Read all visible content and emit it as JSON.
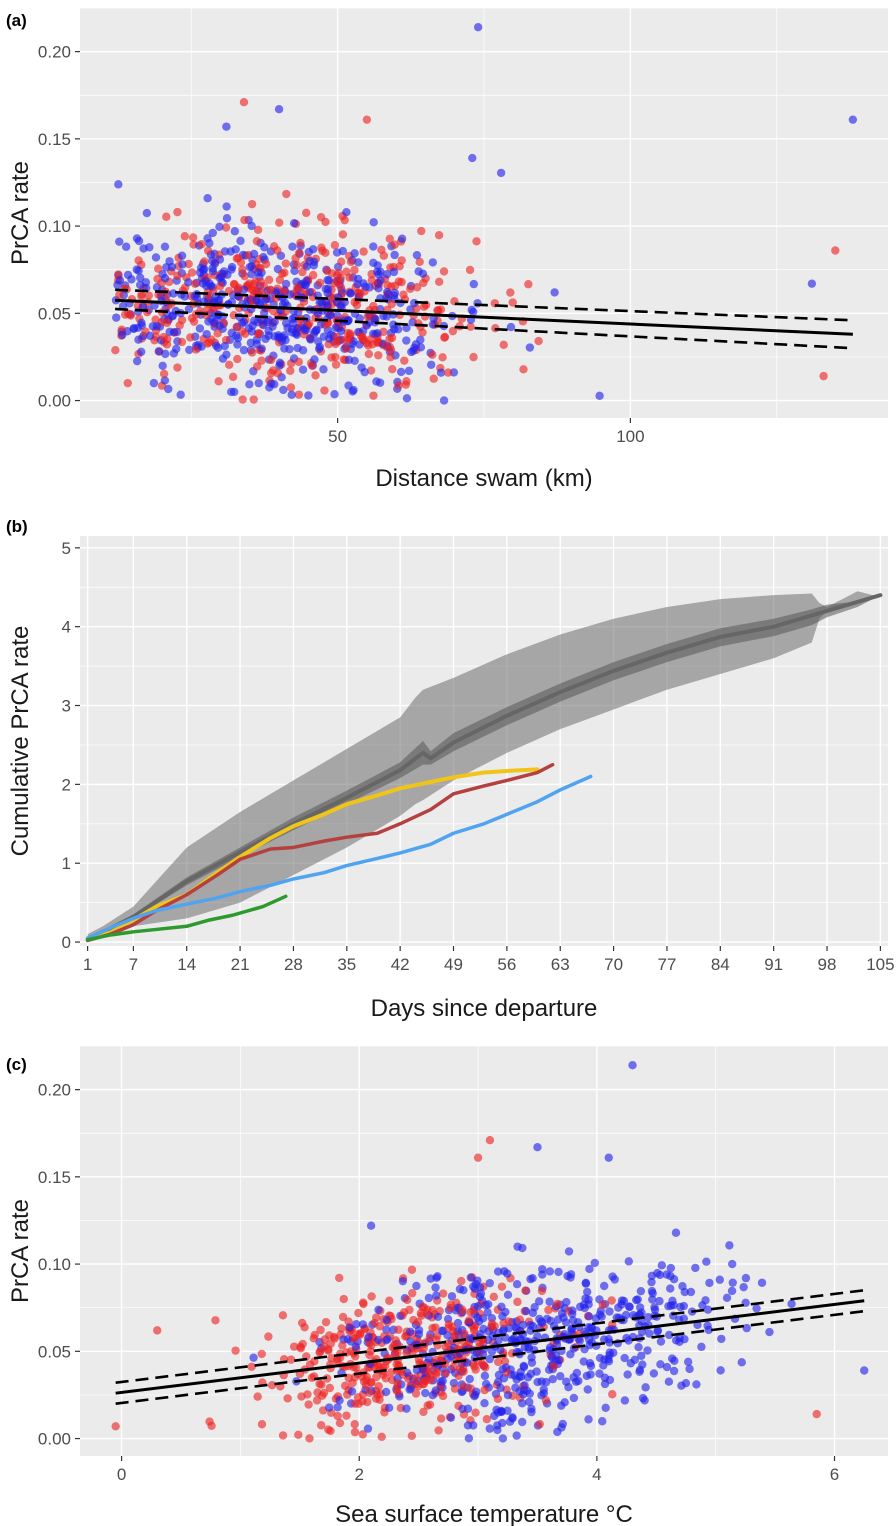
{
  "chart_data": [
    {
      "panel": "(a)",
      "type": "scatter",
      "xlabel": "Distance swam (km)",
      "ylabel": "PrCA rate",
      "xlim": [
        6,
        144
      ],
      "ylim": [
        -0.01,
        0.225
      ],
      "xticks": [
        50,
        100
      ],
      "yticks": [
        0.0,
        0.05,
        0.1,
        0.15,
        0.2
      ],
      "ytick_labels": [
        "0.00",
        "0.05",
        "0.10",
        "0.15",
        "0.20"
      ],
      "grid": true,
      "colors": {
        "blue": "#2222ee",
        "red": "#ee2222",
        "background": "#ebebeb"
      },
      "scatter_groups": [
        {
          "color": "blue",
          "n": 520,
          "x_center": 40,
          "x_spread": 22,
          "x_min": 12,
          "x_max": 140,
          "y_intercept": 0.062,
          "y_slope": -0.00018,
          "y_spread": 0.026,
          "seed": 11
        },
        {
          "color": "red",
          "n": 430,
          "x_center": 42,
          "x_spread": 24,
          "x_min": 12,
          "x_max": 140,
          "y_intercept": 0.06,
          "y_slope": -0.00017,
          "y_spread": 0.025,
          "seed": 23
        }
      ],
      "highlight_points": [
        {
          "x": 74,
          "y": 0.214,
          "color": "blue"
        },
        {
          "x": 34,
          "y": 0.171,
          "color": "red"
        },
        {
          "x": 40,
          "y": 0.167,
          "color": "blue"
        },
        {
          "x": 55,
          "y": 0.161,
          "color": "red"
        },
        {
          "x": 138,
          "y": 0.161,
          "color": "blue"
        },
        {
          "x": 31,
          "y": 0.157,
          "color": "blue"
        },
        {
          "x": 73,
          "y": 0.139,
          "color": "blue"
        },
        {
          "x": 135,
          "y": 0.086,
          "color": "red"
        },
        {
          "x": 133,
          "y": 0.014,
          "color": "red"
        },
        {
          "x": 131,
          "y": 0.067,
          "color": "blue"
        }
      ],
      "fit": {
        "x": [
          12,
          138
        ],
        "y": [
          0.0575,
          0.038
        ]
      },
      "fit_ci_upper": {
        "x": [
          12,
          138
        ],
        "y": [
          0.0635,
          0.046
        ]
      },
      "fit_ci_lower": {
        "x": [
          12,
          138
        ],
        "y": [
          0.0525,
          0.03
        ]
      }
    },
    {
      "panel": "(b)",
      "type": "line",
      "xlabel": "Days since departure",
      "ylabel": "Cumulative PrCA rate",
      "xlim": [
        0,
        106
      ],
      "ylim": [
        -0.05,
        5.15
      ],
      "xticks": [
        1,
        7,
        14,
        21,
        28,
        35,
        42,
        49,
        56,
        63,
        70,
        77,
        84,
        91,
        98,
        105
      ],
      "yticks": [
        0,
        1,
        2,
        3,
        4,
        5
      ],
      "grid": true,
      "band_outer": {
        "x": [
          1,
          3,
          7,
          14,
          21,
          28,
          35,
          42,
          44,
          45,
          49,
          56,
          63,
          70,
          77,
          84,
          91,
          96,
          97,
          98,
          102,
          104,
          105
        ],
        "upper": [
          0.1,
          0.2,
          0.45,
          1.2,
          1.65,
          2.05,
          2.45,
          2.85,
          3.1,
          3.2,
          3.35,
          3.65,
          3.9,
          4.1,
          4.25,
          4.35,
          4.4,
          4.42,
          4.3,
          4.25,
          4.45,
          4.4,
          4.4
        ],
        "lower": [
          0.0,
          0.05,
          0.2,
          0.3,
          0.5,
          0.85,
          1.2,
          1.6,
          1.75,
          1.8,
          2.05,
          2.4,
          2.7,
          2.95,
          3.2,
          3.4,
          3.6,
          3.8,
          4.1,
          4.2,
          4.3,
          4.35,
          4.4
        ]
      },
      "band_inner": {
        "x": [
          1,
          7,
          14,
          21,
          28,
          35,
          42,
          45,
          46,
          49,
          56,
          63,
          70,
          77,
          84,
          91,
          96,
          98,
          102,
          105
        ],
        "upper": [
          0.05,
          0.35,
          0.82,
          1.2,
          1.58,
          1.92,
          2.28,
          2.55,
          2.42,
          2.65,
          2.98,
          3.28,
          3.55,
          3.78,
          3.98,
          4.1,
          4.22,
          4.28,
          4.32,
          4.4
        ],
        "lower": [
          0.02,
          0.3,
          0.72,
          1.08,
          1.42,
          1.75,
          2.08,
          2.25,
          2.25,
          2.42,
          2.75,
          3.05,
          3.32,
          3.55,
          3.75,
          3.88,
          4.02,
          4.12,
          4.25,
          4.4
        ]
      },
      "series": [
        {
          "color": "#666666",
          "width": 4,
          "x": [
            1,
            7,
            14,
            21,
            28,
            35,
            42,
            45,
            46,
            49,
            56,
            63,
            70,
            77,
            84,
            91,
            98,
            105
          ],
          "y": [
            0.03,
            0.32,
            0.77,
            1.14,
            1.5,
            1.83,
            2.18,
            2.4,
            2.33,
            2.53,
            2.87,
            3.17,
            3.44,
            3.67,
            3.87,
            4.0,
            4.2,
            4.4
          ]
        },
        {
          "color": "#f0c419",
          "width": 4,
          "x": [
            1,
            4,
            7,
            10,
            14,
            18,
            21,
            25,
            28,
            32,
            35,
            39,
            42,
            46,
            49,
            53,
            56,
            60
          ],
          "y": [
            0.03,
            0.12,
            0.28,
            0.45,
            0.6,
            0.88,
            1.08,
            1.32,
            1.47,
            1.62,
            1.75,
            1.86,
            1.95,
            2.03,
            2.09,
            2.15,
            2.17,
            2.19
          ]
        },
        {
          "color": "#b54040",
          "width": 3.5,
          "x": [
            1,
            4,
            7,
            10,
            14,
            18,
            21,
            25,
            28,
            32,
            35,
            39,
            42,
            46,
            49,
            53,
            56,
            60,
            62
          ],
          "y": [
            0.02,
            0.1,
            0.22,
            0.4,
            0.6,
            0.85,
            1.05,
            1.18,
            1.2,
            1.28,
            1.33,
            1.38,
            1.5,
            1.68,
            1.88,
            1.98,
            2.05,
            2.15,
            2.25
          ]
        },
        {
          "color": "#4fa3f0",
          "width": 3.5,
          "x": [
            1,
            4,
            7,
            10,
            14,
            18,
            21,
            25,
            28,
            32,
            35,
            39,
            42,
            46,
            49,
            53,
            56,
            60,
            63,
            67
          ],
          "y": [
            0.05,
            0.18,
            0.3,
            0.4,
            0.48,
            0.56,
            0.64,
            0.72,
            0.8,
            0.88,
            0.97,
            1.06,
            1.13,
            1.24,
            1.38,
            1.5,
            1.62,
            1.78,
            1.93,
            2.1
          ]
        },
        {
          "color": "#2e9a2e",
          "width": 3.5,
          "x": [
            1,
            4,
            7,
            10,
            14,
            17,
            20,
            24,
            27
          ],
          "y": [
            0.03,
            0.09,
            0.13,
            0.16,
            0.2,
            0.28,
            0.34,
            0.45,
            0.58
          ]
        }
      ]
    },
    {
      "panel": "(c)",
      "type": "scatter",
      "xlabel": "Sea surface temperature  °C",
      "ylabel": "PrCA rate",
      "xlim": [
        -0.35,
        6.45
      ],
      "ylim": [
        -0.01,
        0.225
      ],
      "xticks": [
        0,
        2,
        4,
        6
      ],
      "yticks": [
        0.0,
        0.05,
        0.1,
        0.15,
        0.2
      ],
      "ytick_labels": [
        "0.00",
        "0.05",
        "0.10",
        "0.15",
        "0.20"
      ],
      "grid": true,
      "colors": {
        "blue": "#2222ee",
        "red": "#ee2222",
        "background": "#ebebeb"
      },
      "scatter_groups": [
        {
          "color": "blue",
          "n": 560,
          "x_center": 3.5,
          "x_spread": 1.1,
          "x_min": 0.6,
          "x_max": 6.3,
          "y_intercept": 0.028,
          "y_slope": 0.0085,
          "y_spread": 0.026,
          "seed": 37
        },
        {
          "color": "red",
          "n": 420,
          "x_center": 2.4,
          "x_spread": 0.9,
          "x_min": -0.1,
          "x_max": 6.1,
          "y_intercept": 0.026,
          "y_slope": 0.0085,
          "y_spread": 0.024,
          "seed": 53
        }
      ],
      "highlight_points": [
        {
          "x": 4.3,
          "y": 0.214,
          "color": "blue"
        },
        {
          "x": 3.1,
          "y": 0.171,
          "color": "red"
        },
        {
          "x": 3.5,
          "y": 0.167,
          "color": "blue"
        },
        {
          "x": 4.1,
          "y": 0.161,
          "color": "blue"
        },
        {
          "x": 3.0,
          "y": 0.161,
          "color": "red"
        },
        {
          "x": 2.1,
          "y": 0.122,
          "color": "blue"
        },
        {
          "x": 0.3,
          "y": 0.062,
          "color": "red"
        },
        {
          "x": 6.25,
          "y": 0.039,
          "color": "blue"
        },
        {
          "x": 5.85,
          "y": 0.014,
          "color": "red"
        },
        {
          "x": -0.05,
          "y": 0.007,
          "color": "red"
        }
      ],
      "fit": {
        "x": [
          -0.05,
          6.25
        ],
        "y": [
          0.026,
          0.079
        ]
      },
      "fit_ci_upper": {
        "x": [
          -0.05,
          6.25
        ],
        "y": [
          0.032,
          0.085
        ]
      },
      "fit_ci_lower": {
        "x": [
          -0.05,
          6.25
        ],
        "y": [
          0.02,
          0.073
        ]
      }
    }
  ]
}
